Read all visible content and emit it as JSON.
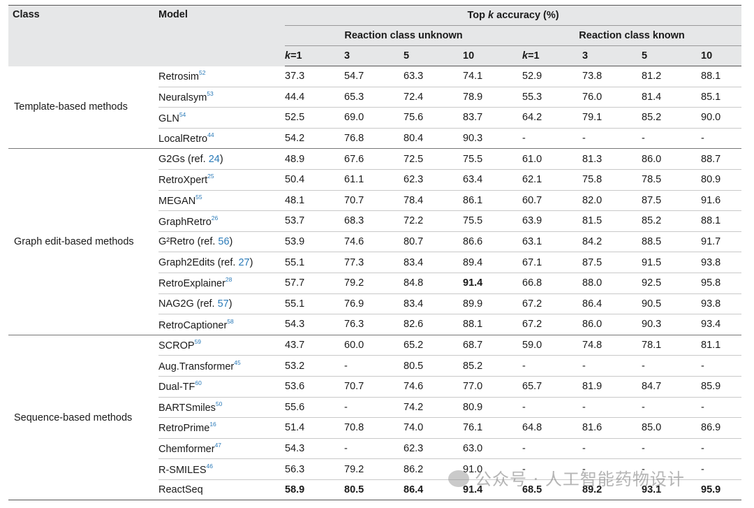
{
  "header": {
    "class": "Class",
    "model": "Model",
    "topk_prefix": "Top ",
    "topk_k": "k",
    "topk_suffix": " accuracy (%)",
    "unknown": "Reaction class unknown",
    "known": "Reaction class known",
    "k_cols": [
      {
        "k": "k",
        "eq": "=1"
      },
      {
        "k": "",
        "eq": "3"
      },
      {
        "k": "",
        "eq": "5"
      },
      {
        "k": "",
        "eq": "10"
      },
      {
        "k": "k",
        "eq": "=1"
      },
      {
        "k": "",
        "eq": "3"
      },
      {
        "k": "",
        "eq": "5"
      },
      {
        "k": "",
        "eq": "10"
      }
    ]
  },
  "groups": [
    {
      "name": "Template-based methods",
      "rows": [
        {
          "model": "Retrosim",
          "sup": "52",
          "ref": "",
          "vals": [
            "37.3",
            "54.7",
            "63.3",
            "74.1",
            "52.9",
            "73.8",
            "81.2",
            "88.1"
          ],
          "bold": []
        },
        {
          "model": "Neuralsym",
          "sup": "53",
          "ref": "",
          "vals": [
            "44.4",
            "65.3",
            "72.4",
            "78.9",
            "55.3",
            "76.0",
            "81.4",
            "85.1"
          ],
          "bold": []
        },
        {
          "model": "GLN",
          "sup": "54",
          "ref": "",
          "vals": [
            "52.5",
            "69.0",
            "75.6",
            "83.7",
            "64.2",
            "79.1",
            "85.2",
            "90.0"
          ],
          "bold": []
        },
        {
          "model": "LocalRetro",
          "sup": "44",
          "ref": "",
          "vals": [
            "54.2",
            "76.8",
            "80.4",
            "90.3",
            "-",
            "-",
            "-",
            "-"
          ],
          "bold": []
        }
      ]
    },
    {
      "name": "Graph edit-based methods",
      "rows": [
        {
          "model": "G2Gs (ref. ",
          "sup": "",
          "ref": "24",
          "vals": [
            "48.9",
            "67.6",
            "72.5",
            "75.5",
            "61.0",
            "81.3",
            "86.0",
            "88.7"
          ],
          "bold": []
        },
        {
          "model": "RetroXpert",
          "sup": "25",
          "ref": "",
          "vals": [
            "50.4",
            "61.1",
            "62.3",
            "63.4",
            "62.1",
            "75.8",
            "78.5",
            "80.9"
          ],
          "bold": []
        },
        {
          "model": "MEGAN",
          "sup": "55",
          "ref": "",
          "vals": [
            "48.1",
            "70.7",
            "78.4",
            "86.1",
            "60.7",
            "82.0",
            "87.5",
            "91.6"
          ],
          "bold": []
        },
        {
          "model": "GraphRetro",
          "sup": "26",
          "ref": "",
          "vals": [
            "53.7",
            "68.3",
            "72.2",
            "75.5",
            "63.9",
            "81.5",
            "85.2",
            "88.1"
          ],
          "bold": []
        },
        {
          "model": "G²Retro (ref. ",
          "sup": "",
          "ref": "56",
          "vals": [
            "53.9",
            "74.6",
            "80.7",
            "86.6",
            "63.1",
            "84.2",
            "88.5",
            "91.7"
          ],
          "bold": []
        },
        {
          "model": "Graph2Edits (ref. ",
          "sup": "",
          "ref": "27",
          "vals": [
            "55.1",
            "77.3",
            "83.4",
            "89.4",
            "67.1",
            "87.5",
            "91.5",
            "93.8"
          ],
          "bold": []
        },
        {
          "model": "RetroExplainer",
          "sup": "28",
          "ref": "",
          "vals": [
            "57.7",
            "79.2",
            "84.8",
            "91.4",
            "66.8",
            "88.0",
            "92.5",
            "95.8"
          ],
          "bold": [
            3
          ]
        },
        {
          "model": "NAG2G (ref. ",
          "sup": "",
          "ref": "57",
          "vals": [
            "55.1",
            "76.9",
            "83.4",
            "89.9",
            "67.2",
            "86.4",
            "90.5",
            "93.8"
          ],
          "bold": []
        },
        {
          "model": "RetroCaptioner",
          "sup": "58",
          "ref": "",
          "vals": [
            "54.3",
            "76.3",
            "82.6",
            "88.1",
            "67.2",
            "86.0",
            "90.3",
            "93.4"
          ],
          "bold": []
        }
      ]
    },
    {
      "name": "Sequence-based methods",
      "rows": [
        {
          "model": "SCROP",
          "sup": "59",
          "ref": "",
          "vals": [
            "43.7",
            "60.0",
            "65.2",
            "68.7",
            "59.0",
            "74.8",
            "78.1",
            "81.1"
          ],
          "bold": []
        },
        {
          "model": "Aug.Transformer",
          "sup": "45",
          "ref": "",
          "vals": [
            "53.2",
            "-",
            "80.5",
            "85.2",
            "-",
            "-",
            "-",
            "-"
          ],
          "bold": []
        },
        {
          "model": "Dual-TF",
          "sup": "60",
          "ref": "",
          "vals": [
            "53.6",
            "70.7",
            "74.6",
            "77.0",
            "65.7",
            "81.9",
            "84.7",
            "85.9"
          ],
          "bold": []
        },
        {
          "model": "BARTSmiles",
          "sup": "50",
          "ref": "",
          "vals": [
            "55.6",
            "-",
            "74.2",
            "80.9",
            "-",
            "-",
            "-",
            "-"
          ],
          "bold": []
        },
        {
          "model": "RetroPrime",
          "sup": "16",
          "ref": "",
          "vals": [
            "51.4",
            "70.8",
            "74.0",
            "76.1",
            "64.8",
            "81.6",
            "85.0",
            "86.9"
          ],
          "bold": []
        },
        {
          "model": "Chemformer",
          "sup": "47",
          "ref": "",
          "vals": [
            "54.3",
            "-",
            "62.3",
            "63.0",
            "-",
            "-",
            "-",
            "-"
          ],
          "bold": []
        },
        {
          "model": "R-SMILES",
          "sup": "46",
          "ref": "",
          "vals": [
            "56.3",
            "79.2",
            "86.2",
            "91.0",
            "-",
            "-",
            "-",
            "-"
          ],
          "bold": []
        },
        {
          "model": "ReactSeq",
          "sup": "",
          "ref": "",
          "vals": [
            "58.9",
            "80.5",
            "86.4",
            "91.4",
            "68.5",
            "89.2",
            "93.1",
            "95.9"
          ],
          "bold": [
            0,
            1,
            2,
            3,
            4,
            5,
            6,
            7
          ]
        }
      ]
    }
  ],
  "watermark": "公众号 · 人工智能药物设计"
}
